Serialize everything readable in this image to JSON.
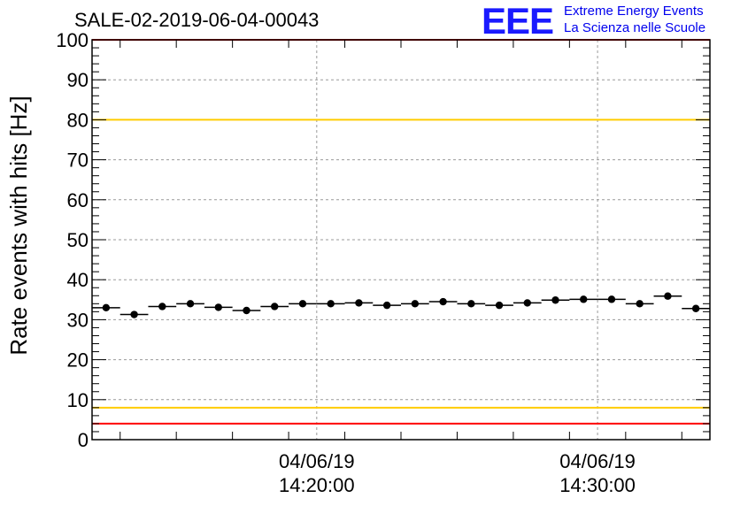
{
  "header": {
    "title": "SALE-02-2019-06-04-00043",
    "logo": "EEE",
    "logo_line1": "Extreme Energy Events",
    "logo_line2": "La Scienza nelle Scuole"
  },
  "chart_data": {
    "type": "scatter",
    "title": "SALE-02-2019-06-04-00043",
    "ylabel": "Rate events with hits [Hz]",
    "xlabel": "",
    "ylim": [
      0,
      100
    ],
    "y_ticks": [
      0,
      10,
      20,
      30,
      40,
      50,
      60,
      70,
      80,
      90,
      100
    ],
    "x_ticks": [
      {
        "date": "04/06/19",
        "time": "14:20:00"
      },
      {
        "date": "04/06/19",
        "time": "14:30:00"
      }
    ],
    "xlim": [
      "2019-06-04 14:12:00",
      "2019-06-04 14:34:00"
    ],
    "grid": true,
    "x_error_bar_minutes": 1,
    "points": [
      {
        "t": "14:12:30",
        "y": 33.0
      },
      {
        "t": "14:13:30",
        "y": 31.3
      },
      {
        "t": "14:14:30",
        "y": 33.3
      },
      {
        "t": "14:15:30",
        "y": 34.0
      },
      {
        "t": "14:16:30",
        "y": 33.1
      },
      {
        "t": "14:17:30",
        "y": 32.3
      },
      {
        "t": "14:18:30",
        "y": 33.3
      },
      {
        "t": "14:19:30",
        "y": 34.0
      },
      {
        "t": "14:20:30",
        "y": 34.0
      },
      {
        "t": "14:21:30",
        "y": 34.2
      },
      {
        "t": "14:22:30",
        "y": 33.6
      },
      {
        "t": "14:23:30",
        "y": 34.0
      },
      {
        "t": "14:24:30",
        "y": 34.5
      },
      {
        "t": "14:25:30",
        "y": 34.0
      },
      {
        "t": "14:26:30",
        "y": 33.6
      },
      {
        "t": "14:27:30",
        "y": 34.2
      },
      {
        "t": "14:28:30",
        "y": 34.9
      },
      {
        "t": "14:29:30",
        "y": 35.1
      },
      {
        "t": "14:30:30",
        "y": 35.1
      },
      {
        "t": "14:31:30",
        "y": 34.0
      },
      {
        "t": "14:32:30",
        "y": 35.9
      },
      {
        "t": "14:33:30",
        "y": 32.8
      }
    ],
    "reference_lines": [
      {
        "y": 100,
        "color": "#ff0000"
      },
      {
        "y": 80,
        "color": "#ffcc00"
      },
      {
        "y": 8,
        "color": "#ffcc00"
      },
      {
        "y": 4,
        "color": "#ff0000"
      }
    ]
  }
}
